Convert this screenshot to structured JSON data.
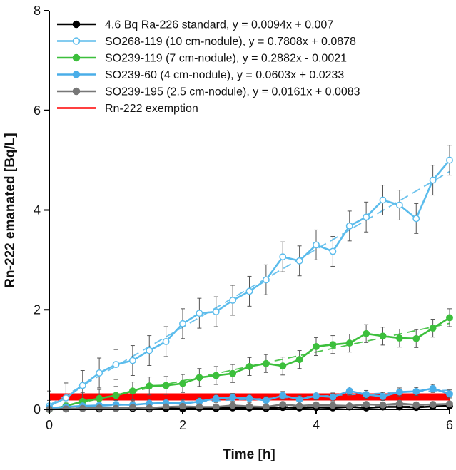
{
  "chart_data": {
    "type": "line",
    "title": "",
    "xlabel": "Time [h]",
    "ylabel": "Rn-222 emanated [Bq/L]",
    "xlim": [
      0,
      6
    ],
    "ylim": [
      0,
      8
    ],
    "xticks": [
      0,
      2,
      4,
      6
    ],
    "yticks": [
      0,
      2,
      4,
      6,
      8
    ],
    "grid": false,
    "legend_position": "top-left",
    "series": [
      {
        "name": "4.6 Bq Ra-226 standard, y = 0.0094x + 0.007",
        "color": "#000000",
        "marker": "filled",
        "x": [
          0,
          0.25,
          0.5,
          0.75,
          1.0,
          1.25,
          1.5,
          1.75,
          2.0,
          2.25,
          2.5,
          2.75,
          3.0,
          3.25,
          3.5,
          3.75,
          4.0,
          4.25,
          4.5,
          4.75,
          5.0,
          5.25,
          5.5,
          5.75,
          6.0
        ],
        "y": [
          0.01,
          0.01,
          0.02,
          0.01,
          0.02,
          0.02,
          0.01,
          0.02,
          0.01,
          0.03,
          0.02,
          0.03,
          0.03,
          0.02,
          0.04,
          0.03,
          0.04,
          0.03,
          0.05,
          0.03,
          0.05,
          0.05,
          0.04,
          0.06,
          0.07
        ],
        "error": 0.03,
        "fit": {
          "slope": 0.0094,
          "intercept": 0.007
        }
      },
      {
        "name": "SO268-119 (10 cm-nodule), y = 0.7808x + 0.0878",
        "color": "#5bbcec",
        "marker": "open",
        "x": [
          0,
          0.25,
          0.5,
          0.75,
          1.0,
          1.25,
          1.5,
          1.75,
          2.0,
          2.25,
          2.5,
          2.75,
          3.0,
          3.25,
          3.5,
          3.75,
          4.0,
          4.25,
          4.5,
          4.75,
          5.0,
          5.25,
          5.5,
          5.75,
          6.0
        ],
        "y": [
          0.07,
          0.23,
          0.48,
          0.73,
          0.9,
          0.98,
          1.18,
          1.36,
          1.72,
          1.93,
          1.96,
          2.19,
          2.37,
          2.6,
          3.06,
          2.98,
          3.3,
          3.17,
          3.68,
          3.86,
          4.2,
          4.1,
          3.83,
          4.6,
          5.0
        ],
        "error": 0.3,
        "fit": {
          "slope": 0.7808,
          "intercept": 0.0878
        }
      },
      {
        "name": "SO239-119 (7 cm-nodule), y = 0.2882x - 0.0021",
        "color": "#3cbf3c",
        "marker": "filled",
        "x": [
          0,
          0.25,
          0.5,
          0.75,
          1.0,
          1.25,
          1.5,
          1.75,
          2.0,
          2.25,
          2.5,
          2.75,
          3.0,
          3.25,
          3.5,
          3.75,
          4.0,
          4.25,
          4.5,
          4.75,
          5.0,
          5.25,
          5.5,
          5.75,
          6.0
        ],
        "y": [
          0.0,
          0.07,
          0.16,
          0.22,
          0.28,
          0.37,
          0.47,
          0.48,
          0.52,
          0.64,
          0.68,
          0.72,
          0.86,
          0.92,
          0.87,
          1.0,
          1.26,
          1.3,
          1.33,
          1.52,
          1.47,
          1.43,
          1.42,
          1.63,
          1.84
        ],
        "error": 0.18,
        "fit": {
          "slope": 0.2882,
          "intercept": -0.0021
        }
      },
      {
        "name": "SO239-60 (4 cm-nodule), y = 0.0603x + 0.0233",
        "color": "#4aaee8",
        "marker": "filled",
        "x": [
          0,
          0.25,
          0.5,
          0.75,
          1.0,
          1.25,
          1.5,
          1.75,
          2.0,
          2.25,
          2.5,
          2.75,
          3.0,
          3.25,
          3.5,
          3.75,
          4.0,
          4.25,
          4.5,
          4.75,
          5.0,
          5.25,
          5.5,
          5.75,
          6.0
        ],
        "y": [
          0.03,
          0.05,
          0.07,
          0.08,
          0.1,
          0.09,
          0.12,
          0.13,
          0.11,
          0.16,
          0.22,
          0.24,
          0.22,
          0.18,
          0.28,
          0.2,
          0.27,
          0.25,
          0.37,
          0.3,
          0.26,
          0.35,
          0.36,
          0.42,
          0.31
        ],
        "error": 0.08,
        "fit": {
          "slope": 0.0603,
          "intercept": 0.0233
        }
      },
      {
        "name": "SO239-195 (2.5 cm-nodule), y = 0.0161x + 0.0083",
        "color": "#777777",
        "marker": "filled",
        "x": [
          0,
          0.25,
          0.5,
          0.75,
          1.0,
          1.25,
          1.5,
          1.75,
          2.0,
          2.25,
          2.5,
          2.75,
          3.0,
          3.25,
          3.5,
          3.75,
          4.0,
          4.25,
          4.5,
          4.75,
          5.0,
          5.25,
          5.5,
          5.75,
          6.0
        ],
        "y": [
          0.0,
          0.01,
          0.02,
          0.03,
          0.02,
          0.04,
          0.03,
          0.05,
          0.06,
          0.05,
          0.05,
          0.08,
          0.06,
          0.05,
          0.1,
          0.07,
          0.09,
          0.08,
          0.07,
          0.1,
          0.09,
          0.12,
          0.09,
          0.1,
          0.11
        ],
        "error": 0.04,
        "fit": {
          "slope": 0.0161,
          "intercept": 0.0083
        }
      }
    ],
    "reference_line": {
      "name": "Rn-222 exemption",
      "color": "#ff0000",
      "y": 0.25
    }
  }
}
